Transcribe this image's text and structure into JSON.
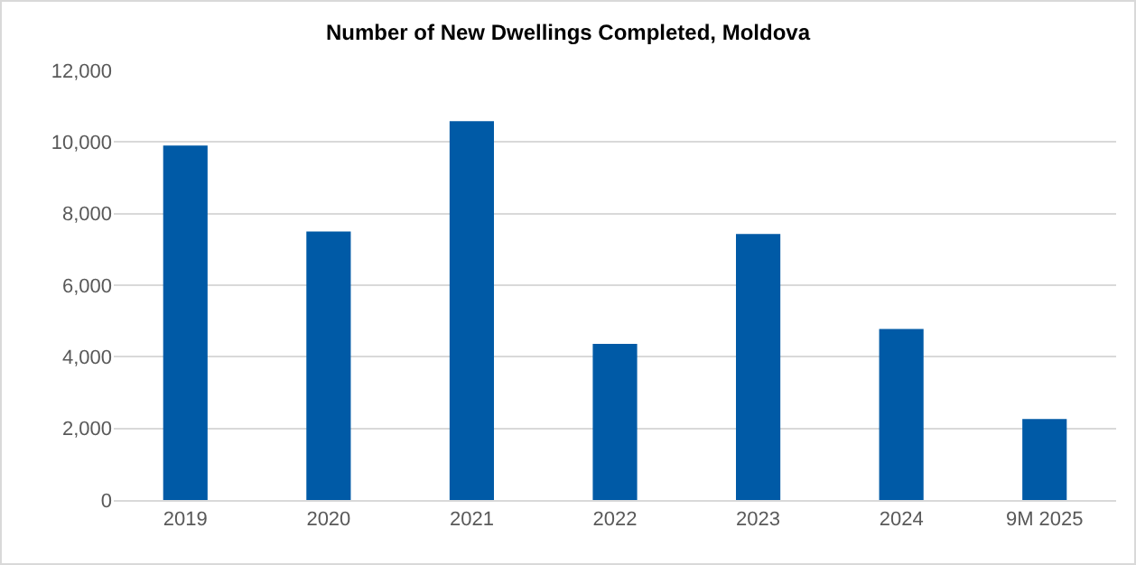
{
  "chart_data": {
    "type": "bar",
    "title": "Number of New Dwellings Completed, Moldova",
    "categories": [
      "2019",
      "2020",
      "2021",
      "2022",
      "2023",
      "2024",
      "9M 2025"
    ],
    "values": [
      9900,
      7500,
      10580,
      4360,
      7430,
      4780,
      2260
    ],
    "color": "#005aa6",
    "ylim": [
      0,
      12000
    ],
    "yticks": [
      {
        "value": 0,
        "label": "0"
      },
      {
        "value": 2000,
        "label": "2,000"
      },
      {
        "value": 4000,
        "label": "4,000"
      },
      {
        "value": 6000,
        "label": "6,000"
      },
      {
        "value": 8000,
        "label": "8,000"
      },
      {
        "value": 10000,
        "label": "10,000"
      },
      {
        "value": 12000,
        "label": "12,000"
      }
    ],
    "grid": "y"
  }
}
